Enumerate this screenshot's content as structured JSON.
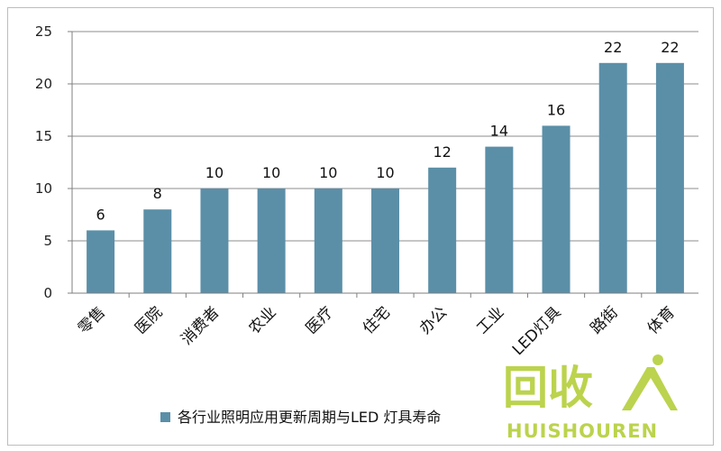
{
  "chart_data": {
    "type": "bar",
    "categories": [
      "零售",
      "医院",
      "消费者",
      "农业",
      "医疗",
      "住宅",
      "办公",
      "工业",
      "LED灯具",
      "路街",
      "体育"
    ],
    "series": [
      {
        "name": "各行业照明应用更新周期与LED 灯具寿命",
        "values": [
          6,
          8,
          10,
          10,
          10,
          10,
          12,
          14,
          16,
          22,
          22
        ]
      }
    ],
    "data_labels": [
      "6",
      "8",
      "10",
      "10",
      "10",
      "10",
      "12",
      "14",
      "16",
      "22",
      "22"
    ],
    "ylim": [
      0,
      25
    ],
    "yticks": [
      "0",
      "5",
      "10",
      "15",
      "20",
      "25"
    ],
    "ytick_values": [
      0,
      5,
      10,
      15,
      20,
      25
    ],
    "grid": true,
    "legend_position": "bottom",
    "colors": {
      "bar": "#5b8fa8",
      "grid": "#8c8c8c",
      "axis": "#7f7f7f"
    }
  },
  "watermark": {
    "main": "回收",
    "sub": "HUISHOUREN"
  }
}
